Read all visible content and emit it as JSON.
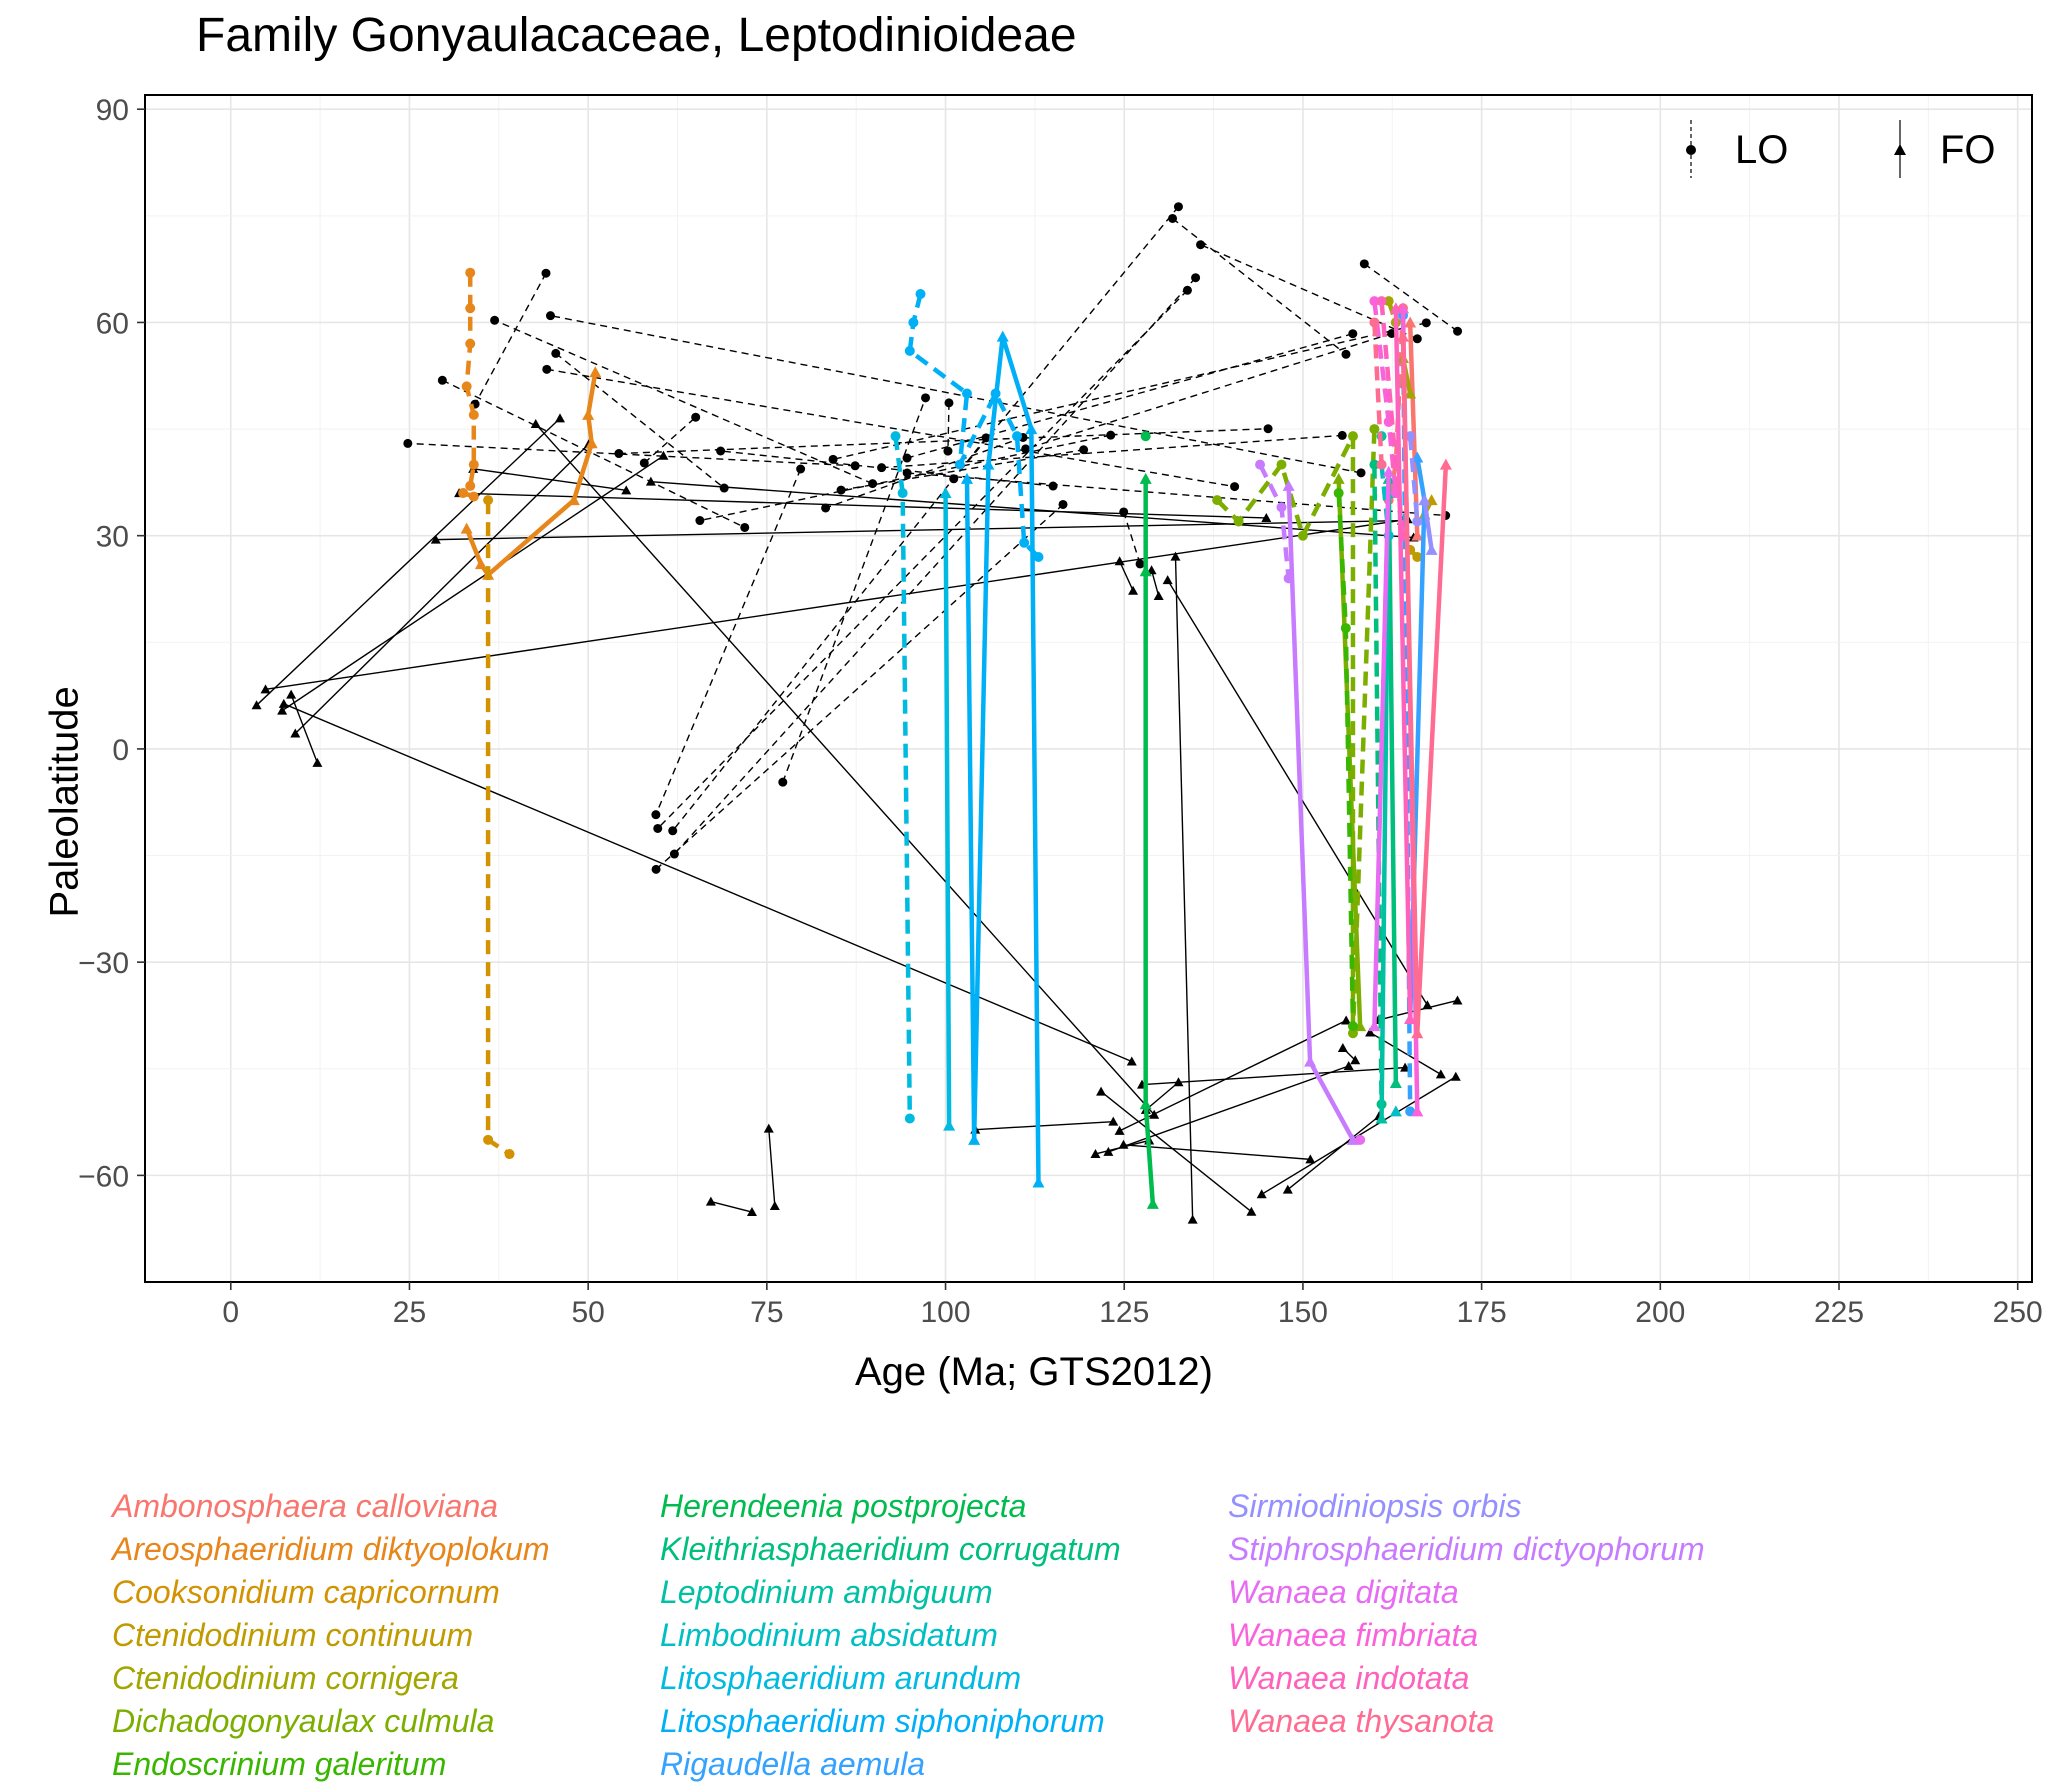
{
  "chart_data": {
    "type": "line",
    "title": "Family Gonyaulacaceae, Leptodinioideae",
    "xlabel": "Age (Ma; GTS2012)",
    "ylabel": "Paleolatitude",
    "xlim": [
      -12,
      252
    ],
    "ylim": [
      -75,
      92
    ],
    "x_ticks": [
      0,
      25,
      50,
      75,
      100,
      125,
      150,
      175,
      200,
      225,
      250
    ],
    "x_tick_labels": [
      "0",
      "25",
      "50",
      "75",
      "100",
      "125",
      "150",
      "175",
      "200",
      "225",
      "250"
    ],
    "y_ticks": [
      -60,
      -30,
      0,
      30,
      60,
      90
    ],
    "y_tick_labels": [
      "−60",
      "−30",
      "0",
      "30",
      "60",
      "90"
    ],
    "grid": true,
    "shape_legend": {
      "placement": "top-right",
      "entries": [
        {
          "label": "LO",
          "marker": "circle",
          "line": "dashed"
        },
        {
          "label": "FO",
          "marker": "triangle",
          "line": "solid"
        }
      ]
    },
    "series": [
      {
        "name": "Ambonosphaera calloviana",
        "color": "#F8766D",
        "lo": [
          [
            164,
            62
          ],
          [
            163,
            40
          ],
          [
            162,
            35
          ]
        ],
        "fo": [
          [
            165,
            60
          ],
          [
            166,
            30
          ]
        ]
      },
      {
        "name": "Areosphaeridium diktyoplokum",
        "color": "#E7861B",
        "lo": [
          [
            33.5,
            67
          ],
          [
            33.5,
            62
          ],
          [
            33.5,
            57
          ],
          [
            33,
            51
          ],
          [
            34,
            47
          ],
          [
            34,
            40
          ],
          [
            33.5,
            37
          ],
          [
            32.5,
            36
          ],
          [
            34,
            35.5
          ]
        ],
        "fo": [
          [
            33,
            31
          ],
          [
            35,
            26
          ],
          [
            36,
            24.5
          ],
          [
            48,
            35
          ],
          [
            50.5,
            43
          ],
          [
            50,
            47
          ],
          [
            51,
            53
          ]
        ]
      },
      {
        "name": "Cooksonidium capricornum",
        "color": "#D39200",
        "lo": [
          [
            36,
            35
          ],
          [
            36,
            -55
          ],
          [
            39,
            -57
          ]
        ],
        "fo": []
      },
      {
        "name": "Ctenidodinium continuum",
        "color": "#C09B00",
        "lo": [
          [
            165,
            28
          ],
          [
            166,
            27
          ]
        ],
        "fo": [
          [
            167,
            33
          ],
          [
            168,
            35
          ]
        ]
      },
      {
        "name": "Ctenidodinium cornigera",
        "color": "#A3A500",
        "lo": [
          [
            162,
            63
          ],
          [
            163,
            60
          ]
        ],
        "fo": [
          [
            164,
            55
          ],
          [
            165,
            50
          ]
        ]
      },
      {
        "name": "Dichadogonyaulax culmula",
        "color": "#7CAE00",
        "lo": [
          [
            138,
            35
          ],
          [
            141,
            32
          ],
          [
            147,
            40
          ],
          [
            150,
            30
          ],
          [
            157,
            44
          ],
          [
            157,
            -40
          ],
          [
            160,
            45
          ]
        ],
        "fo": [
          [
            155,
            38
          ],
          [
            158,
            -39
          ]
        ]
      },
      {
        "name": "Endoscrinium galeritum",
        "color": "#39B600",
        "lo": [
          [
            155,
            36
          ],
          [
            156,
            17
          ],
          [
            157,
            -39
          ]
        ],
        "fo": []
      },
      {
        "name": "Herendeenia postprojecta",
        "color": "#00BB4E",
        "lo": [
          [
            128,
            44
          ]
        ],
        "fo": [
          [
            128,
            38
          ],
          [
            128,
            25
          ],
          [
            128,
            -50
          ],
          [
            129,
            -64
          ]
        ]
      },
      {
        "name": "Kleithriasphaeridium corrugatum",
        "color": "#00BF7D",
        "lo": [
          [
            160,
            40
          ],
          [
            161,
            -50
          ]
        ],
        "fo": [
          [
            162,
            38
          ],
          [
            163,
            -47
          ]
        ]
      },
      {
        "name": "Leptodinium ambiguum",
        "color": "#00C1A3",
        "lo": [
          [
            161,
            44
          ]
        ],
        "fo": [
          [
            162,
            36
          ],
          [
            161,
            -52
          ]
        ]
      },
      {
        "name": "Limbodinium absidatum",
        "color": "#00BFC4",
        "lo": [
          [
            161,
            40
          ],
          [
            162,
            30
          ]
        ],
        "fo": [
          [
            163,
            -51
          ]
        ]
      },
      {
        "name": "Litosphaeridium arundum",
        "color": "#00BAE0",
        "lo": [
          [
            93,
            44
          ],
          [
            94,
            36
          ],
          [
            95,
            -52
          ]
        ],
        "fo": [
          [
            100,
            36
          ],
          [
            100.5,
            -53
          ]
        ]
      },
      {
        "name": "Litosphaeridium siphoniphorum",
        "color": "#00B0F6",
        "lo": [
          [
            96.5,
            64
          ],
          [
            95.5,
            60
          ],
          [
            95,
            56
          ],
          [
            103,
            50
          ],
          [
            102,
            40
          ],
          [
            107,
            50
          ],
          [
            110,
            44
          ],
          [
            111,
            29
          ],
          [
            113,
            27
          ]
        ],
        "fo": [
          [
            103,
            38
          ],
          [
            104,
            -55
          ],
          [
            106,
            40
          ],
          [
            108,
            58
          ],
          [
            112,
            45
          ],
          [
            113,
            -61
          ]
        ]
      },
      {
        "name": "Rigaudella aemula",
        "color": "#35A2FF",
        "lo": [
          [
            164,
            61
          ],
          [
            165,
            -51
          ]
        ],
        "fo": [
          [
            166,
            41
          ],
          [
            167,
            35
          ],
          [
            165,
            -38
          ]
        ]
      },
      {
        "name": "Sirmiodiniopsis orbis",
        "color": "#9590FF",
        "lo": [
          [
            165,
            44
          ],
          [
            166,
            32
          ]
        ],
        "fo": [
          [
            167,
            35
          ],
          [
            168,
            28
          ]
        ]
      },
      {
        "name": "Stiphrosphaeridium dictyophorum",
        "color": "#C77CFF",
        "lo": [
          [
            144,
            40
          ],
          [
            147,
            34
          ],
          [
            148,
            24
          ]
        ],
        "fo": [
          [
            148,
            37
          ],
          [
            151,
            -44
          ],
          [
            157,
            -55
          ]
        ]
      },
      {
        "name": "Wanaea digitata",
        "color": "#E76BF3",
        "lo": [
          [
            158,
            -55
          ]
        ],
        "fo": [
          [
            160,
            -39
          ],
          [
            162,
            39
          ]
        ]
      },
      {
        "name": "Wanaea fimbriata",
        "color": "#FA62DB",
        "lo": [
          [
            160,
            63
          ],
          [
            162,
            46
          ],
          [
            163,
            36
          ]
        ],
        "fo": [
          [
            164,
            62
          ],
          [
            166,
            -51
          ]
        ]
      },
      {
        "name": "Wanaea indotata",
        "color": "#FF62BC",
        "lo": [
          [
            161,
            63
          ],
          [
            163,
            40
          ],
          [
            164,
            30
          ]
        ],
        "fo": [
          [
            163,
            62
          ],
          [
            165,
            -38
          ]
        ]
      },
      {
        "name": "Wanaea thysanota",
        "color": "#FF6C91",
        "lo": [
          [
            160,
            60
          ],
          [
            161,
            40
          ]
        ],
        "fo": [
          [
            164,
            58
          ],
          [
            166,
            -40
          ],
          [
            170,
            40
          ]
        ]
      }
    ],
    "other_taxa_color": "#000000"
  },
  "legend_columns": [
    [
      "Ambonosphaera calloviana",
      "Areosphaeridium diktyoplokum",
      "Cooksonidium capricornum",
      "Ctenidodinium continuum",
      "Ctenidodinium cornigera",
      "Dichadogonyaulax culmula",
      "Endoscrinium galeritum"
    ],
    [
      "Herendeenia postprojecta",
      "Kleithriasphaeridium corrugatum",
      "Leptodinium ambiguum",
      "Limbodinium absidatum",
      "Litosphaeridium arundum",
      "Litosphaeridium siphoniphorum",
      "Rigaudella aemula"
    ],
    [
      "Sirmiodiniopsis orbis",
      "Stiphrosphaeridium dictyophorum",
      "Wanaea digitata",
      "Wanaea fimbriata",
      "Wanaea indotata",
      "Wanaea thysanota"
    ]
  ],
  "legend_colors": [
    [
      "#F8766D",
      "#E7861B",
      "#D39200",
      "#C09B00",
      "#A3A500",
      "#7CAE00",
      "#39B600"
    ],
    [
      "#00BB4E",
      "#00BF7D",
      "#00C1A3",
      "#00BFC4",
      "#00BAE0",
      "#00B0F6",
      "#35A2FF"
    ],
    [
      "#9590FF",
      "#C77CFF",
      "#E76BF3",
      "#FA62DB",
      "#FF62BC",
      "#FF6C91"
    ]
  ]
}
